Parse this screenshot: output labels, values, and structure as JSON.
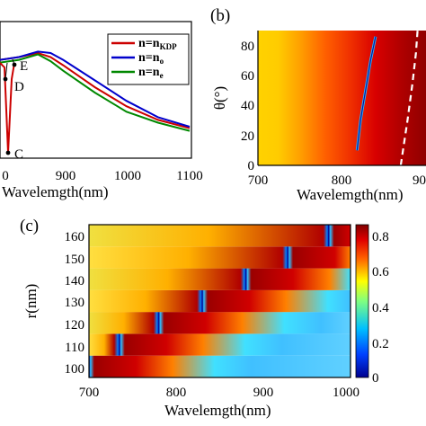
{
  "panels": {
    "a": {
      "xlabel": "Wavelemgth(nm)",
      "xticks": [
        "900",
        "1000",
        "1100"
      ],
      "xtick_partial": "0",
      "legend": [
        {
          "label": "n=n",
          "sub": "KDP",
          "color": "#cc0000"
        },
        {
          "label": "n=n",
          "sub": "o",
          "color": "#0000cc"
        },
        {
          "label": "n=n",
          "sub": "e",
          "color": "#008800"
        }
      ],
      "points": [
        "C",
        "D",
        "E"
      ]
    },
    "b": {
      "letter": "(b)",
      "xlabel": "Wavelemgth(nm)",
      "ylabel": "θ(°)",
      "xticks": [
        "700",
        "800",
        "90"
      ],
      "yticks": [
        "0",
        "20",
        "40",
        "60",
        "80"
      ]
    },
    "c": {
      "letter": "(c)",
      "xlabel": "Wavelemgth(nm)",
      "ylabel": "r(nm)",
      "xticks": [
        "700",
        "800",
        "900",
        "1000"
      ],
      "yticks": [
        "100",
        "110",
        "120",
        "130",
        "140",
        "150",
        "160"
      ],
      "colorbar_ticks": [
        "0",
        "0.2",
        "0.4",
        "0.6",
        "0.8"
      ]
    }
  },
  "chart_data": [
    {
      "type": "line",
      "panel": "a",
      "xlabel": "Wavelemgth(nm)",
      "xlim": [
        800,
        1100
      ],
      "series": [
        {
          "name": "n=nKDP",
          "x": [
            800,
            830,
            860,
            880,
            900,
            950,
            1000,
            1050,
            1100
          ],
          "y": [
            0.72,
            0.74,
            0.77,
            0.74,
            0.68,
            0.52,
            0.38,
            0.28,
            0.22
          ]
        },
        {
          "name": "n=no",
          "x": [
            800,
            830,
            860,
            880,
            900,
            950,
            1000,
            1050,
            1100
          ],
          "y": [
            0.72,
            0.74,
            0.78,
            0.77,
            0.72,
            0.57,
            0.42,
            0.3,
            0.23
          ]
        },
        {
          "name": "n=ne",
          "x": [
            800,
            830,
            860,
            880,
            900,
            950,
            1000,
            1050,
            1100
          ],
          "y": [
            0.7,
            0.72,
            0.76,
            0.71,
            0.64,
            0.48,
            0.34,
            0.26,
            0.2
          ]
        }
      ],
      "annotations": [
        {
          "label": "C",
          "x": 808,
          "y": 0.1
        },
        {
          "label": "D",
          "x": 812,
          "y": 0.55
        },
        {
          "label": "E",
          "x": 815,
          "y": 0.7
        }
      ]
    },
    {
      "type": "heatmap",
      "panel": "b",
      "xlabel": "Wavelemgth(nm)",
      "ylabel": "θ(°)",
      "xlim": [
        700,
        900
      ],
      "ylim": [
        0,
        90
      ],
      "resonance": {
        "x": [
          818,
          822,
          828,
          834,
          840
        ],
        "y": [
          10,
          30,
          50,
          70,
          86
        ]
      },
      "dashed_curve": {
        "x": [
          870,
          878,
          884,
          888,
          890
        ],
        "y": [
          0,
          30,
          55,
          75,
          90
        ]
      }
    },
    {
      "type": "heatmap",
      "panel": "c",
      "xlabel": "Wavelemgth(nm)",
      "ylabel": "r(nm)",
      "xlim": [
        700,
        1000
      ],
      "categories": [
        "100",
        "110",
        "120",
        "130",
        "140",
        "150",
        "160"
      ],
      "resonance_wavelength": [
        700,
        735,
        780,
        830,
        880,
        928,
        975
      ],
      "colorbar": {
        "min": 0,
        "max": 0.85,
        "ticks": [
          "0",
          "0.2",
          "0.4",
          "0.6",
          "0.8"
        ]
      }
    }
  ]
}
